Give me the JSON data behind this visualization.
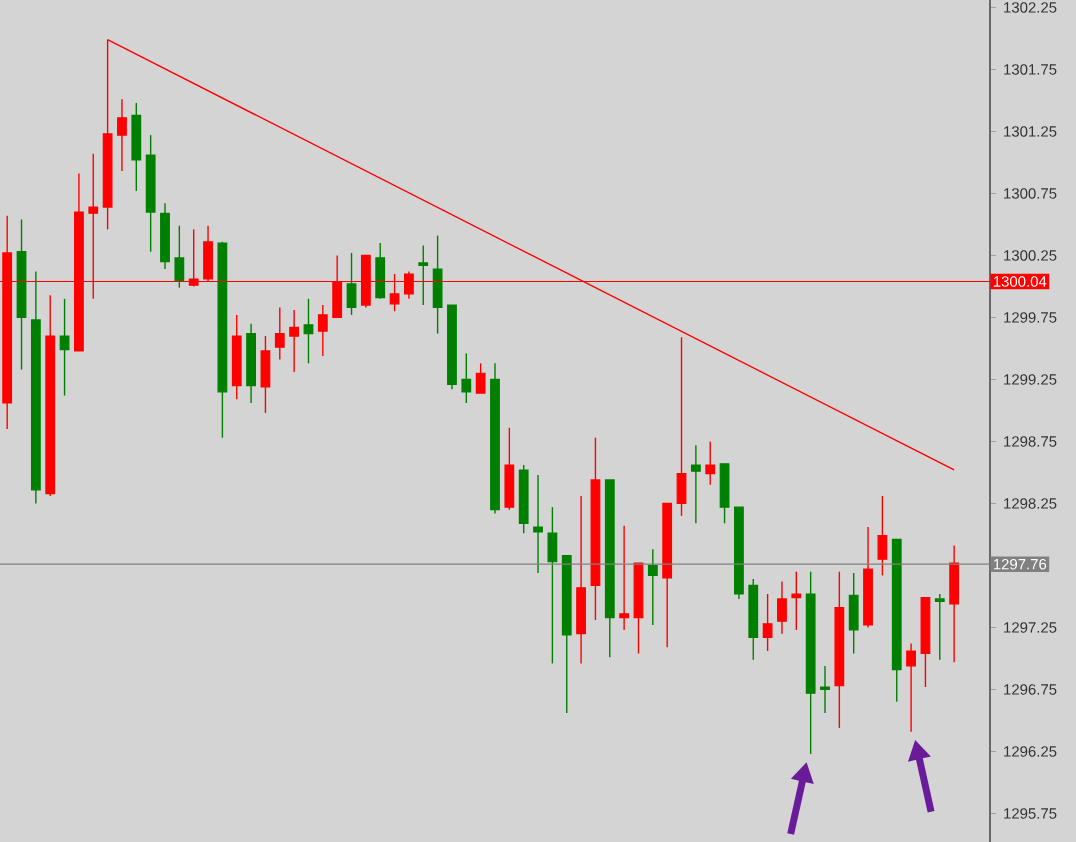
{
  "chart_data": {
    "type": "candlestick",
    "categories": [
      null,
      null,
      null,
      null,
      null,
      null,
      null,
      null,
      null,
      null,
      null,
      null,
      null,
      null,
      null,
      null,
      null,
      null,
      null,
      null,
      null,
      null,
      null,
      null,
      null,
      null,
      null,
      null,
      null,
      null,
      null,
      null,
      null,
      null,
      null,
      null,
      null,
      null,
      null,
      null,
      null,
      null,
      null,
      null,
      null,
      null,
      null,
      null,
      null,
      null,
      null,
      null,
      null,
      null,
      null,
      null,
      null,
      null,
      null,
      null,
      null,
      null,
      null,
      null,
      null,
      null,
      null
    ],
    "ohlc": [
      [
        1299.06,
        1300.57,
        1298.85,
        1300.27
      ],
      [
        1300.28,
        1300.54,
        1299.33,
        1299.75
      ],
      [
        1299.73,
        1300.12,
        1298.25,
        1298.36
      ],
      [
        1298.33,
        1299.93,
        1298.31,
        1299.6
      ],
      [
        1299.6,
        1299.9,
        1299.12,
        1299.49
      ],
      [
        1299.48,
        1300.91,
        1299.48,
        1300.6
      ],
      [
        1300.59,
        1301.07,
        1299.9,
        1300.64
      ],
      [
        1300.64,
        1301.99,
        1300.46,
        1301.23
      ],
      [
        1301.22,
        1301.51,
        1300.93,
        1301.36
      ],
      [
        1301.38,
        1301.48,
        1300.77,
        1301.02
      ],
      [
        1301.06,
        1301.22,
        1300.28,
        1300.6
      ],
      [
        1300.59,
        1300.67,
        1300.14,
        1300.2
      ],
      [
        1300.23,
        1300.49,
        1299.99,
        1300.04
      ],
      [
        1300.01,
        1300.46,
        1300.0,
        1300.06
      ],
      [
        1300.06,
        1300.49,
        1300.04,
        1300.36
      ],
      [
        1300.35,
        1300.36,
        1298.78,
        1299.15
      ],
      [
        1299.2,
        1299.77,
        1299.09,
        1299.6
      ],
      [
        1299.62,
        1299.7,
        1299.06,
        1299.2
      ],
      [
        1299.19,
        1299.6,
        1298.98,
        1299.48
      ],
      [
        1299.51,
        1299.83,
        1299.41,
        1299.62
      ],
      [
        1299.6,
        1299.81,
        1299.31,
        1299.67
      ],
      [
        1299.69,
        1299.9,
        1299.38,
        1299.62
      ],
      [
        1299.64,
        1299.85,
        1299.44,
        1299.77
      ],
      [
        1299.75,
        1300.25,
        1299.75,
        1300.04
      ],
      [
        1300.02,
        1300.27,
        1299.77,
        1299.83
      ],
      [
        1299.85,
        1300.25,
        1299.83,
        1300.25
      ],
      [
        1300.23,
        1300.35,
        1299.9,
        1299.91
      ],
      [
        1299.86,
        1300.1,
        1299.8,
        1299.94
      ],
      [
        1299.94,
        1300.12,
        1299.9,
        1300.1
      ],
      [
        1300.19,
        1300.33,
        1299.85,
        1300.17
      ],
      [
        1300.14,
        1300.41,
        1299.62,
        1299.83
      ],
      [
        1299.85,
        1299.85,
        1299.17,
        1299.21
      ],
      [
        1299.25,
        1299.46,
        1299.06,
        1299.15
      ],
      [
        1299.14,
        1299.38,
        1299.14,
        1299.3
      ],
      [
        1299.25,
        1299.38,
        1298.17,
        1298.2
      ],
      [
        1298.22,
        1298.86,
        1298.2,
        1298.56
      ],
      [
        1298.52,
        1298.56,
        1298.01,
        1298.09
      ],
      [
        1298.06,
        1298.48,
        1297.69,
        1298.02
      ],
      [
        1298.01,
        1298.22,
        1296.96,
        1297.78
      ],
      [
        1297.83,
        1297.83,
        1296.56,
        1297.19
      ],
      [
        1297.2,
        1298.31,
        1296.96,
        1297.57
      ],
      [
        1297.59,
        1298.78,
        1297.31,
        1298.44
      ],
      [
        1298.44,
        1298.44,
        1297.01,
        1297.33
      ],
      [
        1297.33,
        1298.07,
        1297.23,
        1297.36
      ],
      [
        1297.33,
        1297.77,
        1297.04,
        1297.77
      ],
      [
        1297.75,
        1297.88,
        1297.27,
        1297.67
      ],
      [
        1297.65,
        1298.25,
        1297.09,
        1298.25
      ],
      [
        1298.25,
        1299.59,
        1298.15,
        1298.49
      ],
      [
        1298.56,
        1298.72,
        1298.09,
        1298.51
      ],
      [
        1298.49,
        1298.75,
        1298.4,
        1298.56
      ],
      [
        1298.57,
        1298.57,
        1298.09,
        1298.22
      ],
      [
        1298.22,
        1298.22,
        1297.48,
        1297.52
      ],
      [
        1297.59,
        1297.64,
        1296.99,
        1297.17
      ],
      [
        1297.17,
        1297.52,
        1297.06,
        1297.28
      ],
      [
        1297.3,
        1297.62,
        1297.2,
        1297.48
      ],
      [
        1297.49,
        1297.7,
        1297.23,
        1297.52
      ],
      [
        1297.52,
        1297.7,
        1296.23,
        1296.72
      ],
      [
        1296.77,
        1296.94,
        1296.56,
        1296.75
      ],
      [
        1296.78,
        1297.7,
        1296.44,
        1297.41
      ],
      [
        1297.51,
        1297.69,
        1297.04,
        1297.23
      ],
      [
        1297.27,
        1298.06,
        1297.25,
        1297.72
      ],
      [
        1297.8,
        1298.31,
        1297.67,
        1297.99
      ],
      [
        1297.96,
        1297.96,
        1296.65,
        1296.91
      ],
      [
        1296.94,
        1297.12,
        1296.41,
        1297.06
      ],
      [
        1297.04,
        1297.49,
        1296.77,
        1297.49
      ],
      [
        1297.48,
        1297.52,
        1296.99,
        1297.46
      ],
      [
        1297.44,
        1297.91,
        1296.97,
        1297.77
      ]
    ],
    "colors": [
      "#ff0000",
      "#008000",
      "#008000",
      "#ff0000",
      "#008000",
      "#ff0000",
      "#ff0000",
      "#ff0000",
      "#ff0000",
      "#008000",
      "#008000",
      "#008000",
      "#008000",
      "#ff0000",
      "#ff0000",
      "#008000",
      "#ff0000",
      "#008000",
      "#ff0000",
      "#ff0000",
      "#ff0000",
      "#008000",
      "#ff0000",
      "#ff0000",
      "#008000",
      "#ff0000",
      "#008000",
      "#ff0000",
      "#ff0000",
      "#008000",
      "#008000",
      "#008000",
      "#008000",
      "#ff0000",
      "#008000",
      "#ff0000",
      "#008000",
      "#008000",
      "#008000",
      "#008000",
      "#ff0000",
      "#ff0000",
      "#008000",
      "#ff0000",
      "#ff0000",
      "#008000",
      "#ff0000",
      "#ff0000",
      "#008000",
      "#ff0000",
      "#008000",
      "#008000",
      "#008000",
      "#ff0000",
      "#ff0000",
      "#ff0000",
      "#008000",
      "#008000",
      "#ff0000",
      "#008000",
      "#ff0000",
      "#ff0000",
      "#008000",
      "#ff0000",
      "#ff0000",
      "#008000",
      "#ff0000"
    ],
    "series": [
      {
        "type": "line",
        "color": "#ff0000",
        "values": [
          null,
          null,
          null,
          null,
          null,
          null,
          null,
          1301.99,
          null,
          null,
          null,
          null,
          null,
          null,
          null,
          null,
          null,
          null,
          null,
          null,
          null,
          null,
          null,
          null,
          null,
          null,
          null,
          null,
          null,
          null,
          null,
          null,
          null,
          null,
          null,
          null,
          null,
          null,
          null,
          null,
          null,
          null,
          null,
          null,
          null,
          null,
          null,
          null,
          null,
          null,
          null,
          null,
          null,
          null,
          null,
          null,
          null,
          null,
          null,
          null,
          null,
          null,
          null,
          null,
          null,
          null,
          1298.52
        ]
      }
    ],
    "ylim": [
      1295.52,
      1302.31
    ],
    "yticks": [
      1302.25,
      1301.75,
      1301.25,
      1300.75,
      1300.25,
      1299.75,
      1299.25,
      1298.75,
      1298.25,
      1297.25,
      1296.75,
      1296.25,
      1295.75
    ],
    "tick_labels": "y",
    "ref_lines": [
      {
        "axis": "y",
        "value": 1300.04,
        "label": "1300.04",
        "color": "#ff0000"
      },
      {
        "axis": "y",
        "value": 1297.76,
        "label": "1297.76",
        "color": "#808080"
      }
    ]
  }
}
